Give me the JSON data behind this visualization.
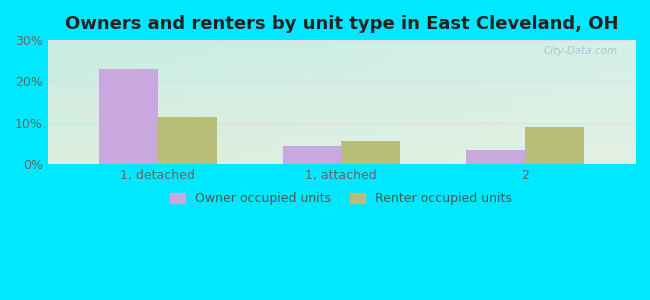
{
  "title": "Owners and renters by unit type in East Cleveland, OH",
  "categories": [
    "1, detached",
    "1, attached",
    "2"
  ],
  "owner_values": [
    23,
    4.5,
    3.5
  ],
  "renter_values": [
    11.5,
    5.5,
    9.0
  ],
  "owner_color": "#c9a8e0",
  "renter_color": "#b8be7a",
  "ylim": [
    0,
    30
  ],
  "yticks": [
    0,
    10,
    20,
    30
  ],
  "ytick_labels": [
    "0%",
    "10%",
    "20%",
    "30%"
  ],
  "bar_width": 0.32,
  "outer_bg": "#00e8ff",
  "bg_top_left": "#c8ede4",
  "bg_bottom_right": "#ddeedd",
  "legend_labels": [
    "Owner occupied units",
    "Renter occupied units"
  ],
  "watermark": "City-Data.com",
  "title_fontsize": 13,
  "tick_fontsize": 9
}
